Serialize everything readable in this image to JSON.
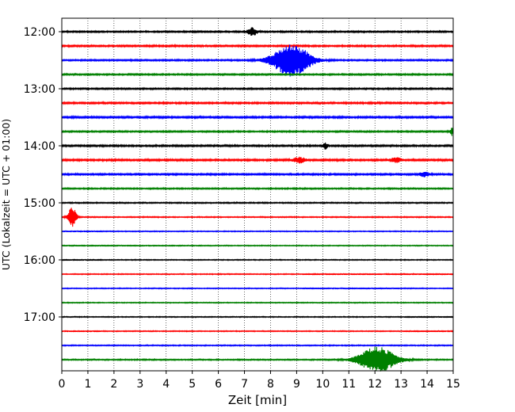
{
  "chart_data": {
    "type": "line",
    "title": "",
    "xlabel": "Zeit  [min]",
    "ylabel": "UTC (Lokalzeit = UTC + 01:00)",
    "xlim": [
      0,
      15
    ],
    "x_ticks": [
      0,
      1,
      2,
      3,
      4,
      5,
      6,
      7,
      8,
      9,
      10,
      11,
      12,
      13,
      14,
      15
    ],
    "y_tick_labels": [
      "12:00",
      "13:00",
      "14:00",
      "15:00",
      "16:00",
      "17:00"
    ],
    "grid": "vertical dotted lines at each minute",
    "trace_colors": [
      "#000000",
      "#ff0000",
      "#0000ff",
      "#008000"
    ],
    "traces": [
      {
        "start": "12:00",
        "color": "#000000",
        "noise": 1.0,
        "events": [
          {
            "t": 7.3,
            "amp": 5,
            "dur": 0.4
          }
        ]
      },
      {
        "start": "12:15",
        "color": "#ff0000",
        "noise": 1.1,
        "events": []
      },
      {
        "start": "12:30",
        "color": "#0000ff",
        "noise": 1.0,
        "events": [
          {
            "t": 8.8,
            "amp": 20,
            "dur": 1.6
          }
        ]
      },
      {
        "start": "12:45",
        "color": "#008000",
        "noise": 1.0,
        "events": []
      },
      {
        "start": "13:00",
        "color": "#000000",
        "noise": 1.0,
        "events": []
      },
      {
        "start": "13:15",
        "color": "#ff0000",
        "noise": 1.1,
        "events": []
      },
      {
        "start": "13:30",
        "color": "#0000ff",
        "noise": 1.2,
        "events": []
      },
      {
        "start": "13:45",
        "color": "#008000",
        "noise": 1.0,
        "events": [
          {
            "t": 14.95,
            "amp": 5,
            "dur": 0.1
          }
        ]
      },
      {
        "start": "14:00",
        "color": "#000000",
        "noise": 1.1,
        "events": [
          {
            "t": 10.1,
            "amp": 4,
            "dur": 0.2
          }
        ]
      },
      {
        "start": "14:15",
        "color": "#ff0000",
        "noise": 1.2,
        "events": [
          {
            "t": 9.1,
            "amp": 3.5,
            "dur": 0.5
          },
          {
            "t": 12.8,
            "amp": 3,
            "dur": 0.5
          }
        ]
      },
      {
        "start": "14:30",
        "color": "#0000ff",
        "noise": 1.1,
        "events": [
          {
            "t": 13.9,
            "amp": 3,
            "dur": 0.4
          }
        ]
      },
      {
        "start": "14:45",
        "color": "#008000",
        "noise": 0.9,
        "events": []
      },
      {
        "start": "15:00",
        "color": "#000000",
        "noise": 0.8,
        "events": []
      },
      {
        "start": "15:15",
        "color": "#ff0000",
        "noise": 0.7,
        "events": [
          {
            "t": 0.4,
            "amp": 13,
            "dur": 0.35
          }
        ]
      },
      {
        "start": "15:30",
        "color": "#0000ff",
        "noise": 0.6,
        "events": []
      },
      {
        "start": "15:45",
        "color": "#008000",
        "noise": 0.6,
        "events": []
      },
      {
        "start": "16:00",
        "color": "#000000",
        "noise": 0.6,
        "events": []
      },
      {
        "start": "16:15",
        "color": "#ff0000",
        "noise": 0.6,
        "events": []
      },
      {
        "start": "16:30",
        "color": "#0000ff",
        "noise": 0.6,
        "events": []
      },
      {
        "start": "16:45",
        "color": "#008000",
        "noise": 0.6,
        "events": []
      },
      {
        "start": "17:00",
        "color": "#000000",
        "noise": 0.6,
        "events": []
      },
      {
        "start": "17:15",
        "color": "#ff0000",
        "noise": 0.6,
        "events": []
      },
      {
        "start": "17:30",
        "color": "#0000ff",
        "noise": 0.7,
        "events": []
      },
      {
        "start": "17:45",
        "color": "#008000",
        "noise": 0.8,
        "events": [
          {
            "t": 12.1,
            "amp": 16,
            "dur": 1.6
          }
        ]
      }
    ]
  }
}
